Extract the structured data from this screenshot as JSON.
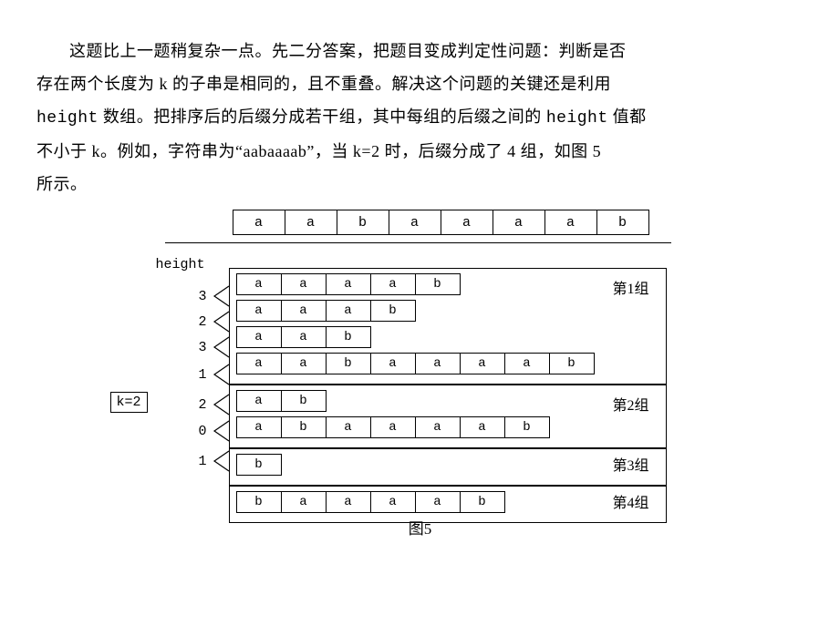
{
  "paragraph": {
    "line1_pre": "这题比上一题稍复杂一点。先二分答案，把题目变成判定性问题：判断是否",
    "line2": "存在两个长度为 k 的子串是相同的，且不重叠。解决这个问题的关键还是利用",
    "line3_pre": " 数组。把排序后的后缀分成若干组，其中每组的后缀之间的 ",
    "line3_post": " 值都",
    "line4_pre": "不小于 k。例如，字符串为",
    "line4_quote": "“aabaaaab”",
    "line4_mid": "，当 k=2 时，后缀分成了 4 组，如图 5",
    "line5": "所示。",
    "height_word": "height"
  },
  "figure": {
    "string": [
      "a",
      "a",
      "b",
      "a",
      "a",
      "a",
      "a",
      "b"
    ],
    "height_label": "height",
    "k_label": "k=2",
    "heights": [
      3,
      2,
      3,
      1,
      2,
      0,
      1
    ],
    "groups": [
      {
        "label": "第1组",
        "suffixes": [
          [
            "a",
            "a",
            "a",
            "a",
            "b"
          ],
          [
            "a",
            "a",
            "a",
            "b"
          ],
          [
            "a",
            "a",
            "b"
          ],
          [
            "a",
            "a",
            "b",
            "a",
            "a",
            "a",
            "a",
            "b"
          ]
        ]
      },
      {
        "label": "第2组",
        "suffixes": [
          [
            "a",
            "b"
          ],
          [
            "a",
            "b",
            "a",
            "a",
            "a",
            "a",
            "b"
          ]
        ]
      },
      {
        "label": "第3组",
        "suffixes": [
          [
            "b"
          ]
        ]
      },
      {
        "label": "第4组",
        "suffixes": [
          [
            "b",
            "a",
            "a",
            "a",
            "a",
            "b"
          ]
        ]
      }
    ],
    "caption": "图5"
  },
  "layout": {
    "height_row_offsets": [
      18,
      46,
      74,
      104,
      137,
      166,
      199
    ],
    "string_cell_w": 56,
    "suf_cell_w": 48,
    "colors": {
      "text": "#000000",
      "bg": "#ffffff",
      "border": "#000000"
    }
  }
}
